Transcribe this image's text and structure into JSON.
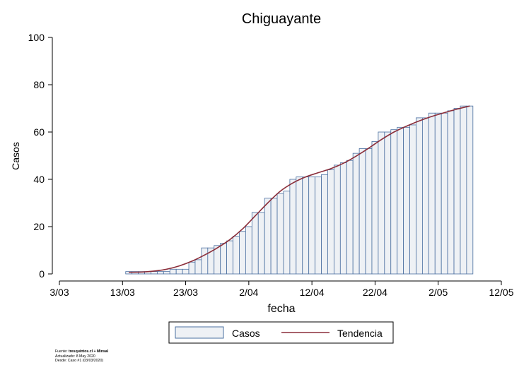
{
  "chart_data": {
    "type": "bar",
    "title": "Chiguayante",
    "xlabel": "fecha",
    "ylabel": "Casos",
    "ylim": [
      0,
      100
    ],
    "yticks": [
      0,
      20,
      40,
      60,
      80,
      100
    ],
    "xticks": [
      {
        "date": "2020-03-03",
        "label": "3/03"
      },
      {
        "date": "2020-03-13",
        "label": "13/03"
      },
      {
        "date": "2020-03-23",
        "label": "23/03"
      },
      {
        "date": "2020-04-02",
        "label": "2/04"
      },
      {
        "date": "2020-04-12",
        "label": "12/04"
      },
      {
        "date": "2020-04-22",
        "label": "22/04"
      },
      {
        "date": "2020-05-02",
        "label": "2/05"
      },
      {
        "date": "2020-05-12",
        "label": "12/05"
      }
    ],
    "xlim": [
      "2020-03-03",
      "2020-05-12"
    ],
    "grid": false,
    "legend_position": "bottom",
    "series": [
      {
        "name": "Casos",
        "kind": "bar",
        "color": "#4a6fa0",
        "fill": "#eef1f5",
        "points": [
          [
            "2020-03-14",
            1
          ],
          [
            "2020-03-15",
            1
          ],
          [
            "2020-03-16",
            1
          ],
          [
            "2020-03-17",
            1
          ],
          [
            "2020-03-18",
            1
          ],
          [
            "2020-03-19",
            1
          ],
          [
            "2020-03-20",
            1
          ],
          [
            "2020-03-21",
            2
          ],
          [
            "2020-03-22",
            2
          ],
          [
            "2020-03-23",
            2
          ],
          [
            "2020-03-24",
            5
          ],
          [
            "2020-03-25",
            6
          ],
          [
            "2020-03-26",
            11
          ],
          [
            "2020-03-27",
            11
          ],
          [
            "2020-03-28",
            12
          ],
          [
            "2020-03-29",
            13
          ],
          [
            "2020-03-30",
            14
          ],
          [
            "2020-03-31",
            16
          ],
          [
            "2020-04-01",
            18
          ],
          [
            "2020-04-02",
            20
          ],
          [
            "2020-04-03",
            26
          ],
          [
            "2020-04-04",
            26
          ],
          [
            "2020-04-05",
            32
          ],
          [
            "2020-04-06",
            32
          ],
          [
            "2020-04-07",
            34
          ],
          [
            "2020-04-08",
            35
          ],
          [
            "2020-04-09",
            40
          ],
          [
            "2020-04-10",
            41
          ],
          [
            "2020-04-11",
            41
          ],
          [
            "2020-04-12",
            41
          ],
          [
            "2020-04-13",
            41
          ],
          [
            "2020-04-14",
            42
          ],
          [
            "2020-04-15",
            44
          ],
          [
            "2020-04-16",
            46
          ],
          [
            "2020-04-17",
            47
          ],
          [
            "2020-04-18",
            48
          ],
          [
            "2020-04-19",
            51
          ],
          [
            "2020-04-20",
            53
          ],
          [
            "2020-04-21",
            53
          ],
          [
            "2020-04-22",
            56
          ],
          [
            "2020-04-23",
            60
          ],
          [
            "2020-04-24",
            60
          ],
          [
            "2020-04-25",
            61
          ],
          [
            "2020-04-26",
            62
          ],
          [
            "2020-04-27",
            62
          ],
          [
            "2020-04-28",
            63
          ],
          [
            "2020-04-29",
            66
          ],
          [
            "2020-04-30",
            66
          ],
          [
            "2020-05-01",
            68
          ],
          [
            "2020-05-02",
            68
          ],
          [
            "2020-05-03",
            68
          ],
          [
            "2020-05-04",
            69
          ],
          [
            "2020-05-05",
            70
          ],
          [
            "2020-05-06",
            71
          ],
          [
            "2020-05-07",
            71
          ]
        ]
      },
      {
        "name": "Tendencia",
        "kind": "line",
        "color": "#8b2e3a",
        "points": [
          [
            "2020-03-14",
            0.7
          ],
          [
            "2020-03-16",
            0.8
          ],
          [
            "2020-03-18",
            1.2
          ],
          [
            "2020-03-20",
            2.0
          ],
          [
            "2020-03-22",
            3.4
          ],
          [
            "2020-03-24",
            5.4
          ],
          [
            "2020-03-26",
            8.0
          ],
          [
            "2020-03-28",
            11.0
          ],
          [
            "2020-03-30",
            14.5
          ],
          [
            "2020-04-01",
            19.0
          ],
          [
            "2020-04-03",
            24.5
          ],
          [
            "2020-04-05",
            30.0
          ],
          [
            "2020-04-07",
            35.0
          ],
          [
            "2020-04-09",
            38.5
          ],
          [
            "2020-04-11",
            41.0
          ],
          [
            "2020-04-13",
            42.8
          ],
          [
            "2020-04-15",
            44.5
          ],
          [
            "2020-04-17",
            46.8
          ],
          [
            "2020-04-19",
            49.8
          ],
          [
            "2020-04-21",
            53.2
          ],
          [
            "2020-04-23",
            56.8
          ],
          [
            "2020-04-25",
            60.0
          ],
          [
            "2020-04-27",
            62.5
          ],
          [
            "2020-04-29",
            64.7
          ],
          [
            "2020-05-01",
            66.6
          ],
          [
            "2020-05-03",
            68.2
          ],
          [
            "2020-05-05",
            69.7
          ],
          [
            "2020-05-07",
            71.0
          ]
        ]
      }
    ]
  },
  "legend": {
    "bars_label": "Casos",
    "line_label": "Tendencia"
  },
  "footer": {
    "source_prefix": "Fuente:",
    "source_value": "tresquintos.cl + Minsal",
    "updated": "Actualizado: 8 May 2020",
    "since": "Desde: Caso #1  (03/03/2020)"
  }
}
